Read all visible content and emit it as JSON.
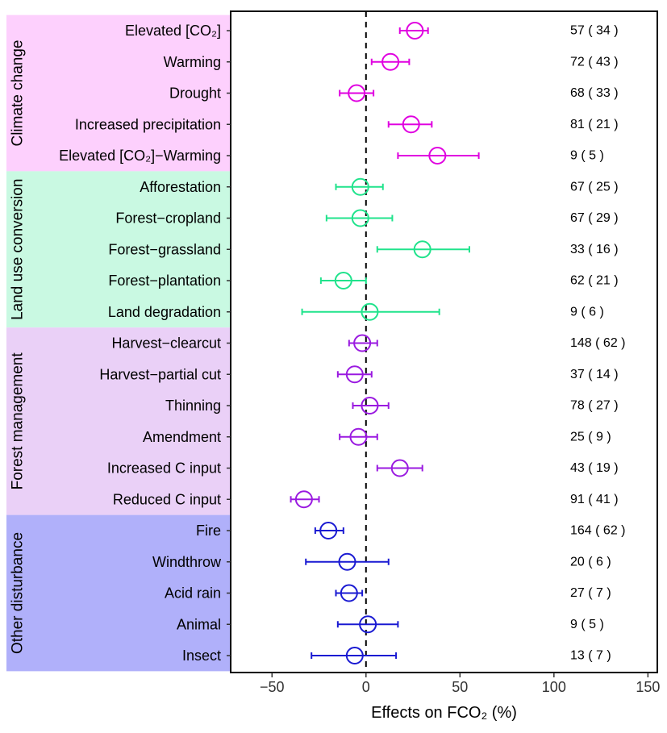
{
  "chart_data": {
    "type": "forest",
    "xlabel": "Effects on FCO₂ (%)",
    "xlim": [
      -72,
      155
    ],
    "xticks": [
      -50,
      0,
      50,
      100,
      150
    ],
    "xtick_labels": [
      "−50",
      "0",
      "50",
      "100",
      "150"
    ],
    "reference_line": 0,
    "groups": [
      {
        "name": "Climate change",
        "color": "#e000e0",
        "bg": "#fdd0fd",
        "rows": [
          {
            "label": "Elevated [CO₂]",
            "mean": 26,
            "lo": 18,
            "hi": 33,
            "count": "57 ( 34 )"
          },
          {
            "label": "Warming",
            "mean": 13,
            "lo": 3,
            "hi": 23,
            "count": "72 ( 43 )"
          },
          {
            "label": "Drought",
            "mean": -5,
            "lo": -14,
            "hi": 4,
            "count": "68 ( 33 )"
          },
          {
            "label": "Increased precipitation",
            "mean": 24,
            "lo": 12,
            "hi": 35,
            "count": "81 ( 21 )"
          },
          {
            "label": "Elevated [CO₂]−Warming",
            "mean": 38,
            "lo": 17,
            "hi": 60,
            "count": "9 ( 5 )"
          }
        ]
      },
      {
        "name": "Land use conversion",
        "color": "#20e38c",
        "bg": "#c9f9e2",
        "rows": [
          {
            "label": "Afforestation",
            "mean": -3,
            "lo": -16,
            "hi": 9,
            "count": "67 ( 25 )"
          },
          {
            "label": "Forest−cropland",
            "mean": -3,
            "lo": -21,
            "hi": 14,
            "count": "67 ( 29 )"
          },
          {
            "label": "Forest−grassland",
            "mean": 30,
            "lo": 6,
            "hi": 55,
            "count": "33 ( 16 )"
          },
          {
            "label": "Forest−plantation",
            "mean": -12,
            "lo": -24,
            "hi": 0,
            "count": "62 ( 21 )"
          },
          {
            "label": "Land degradation",
            "mean": 2,
            "lo": -34,
            "hi": 39,
            "count": "9 ( 6 )"
          }
        ]
      },
      {
        "name": "Forest management",
        "color": "#9a1ae0",
        "bg": "#ead0f7",
        "rows": [
          {
            "label": "Harvest−clearcut",
            "mean": -2,
            "lo": -9,
            "hi": 6,
            "count": "148 ( 62 )"
          },
          {
            "label": "Harvest−partial cut",
            "mean": -6,
            "lo": -15,
            "hi": 3,
            "count": "37 ( 14 )"
          },
          {
            "label": "Thinning",
            "mean": 2,
            "lo": -7,
            "hi": 12,
            "count": "78 ( 27 )"
          },
          {
            "label": "Amendment",
            "mean": -4,
            "lo": -14,
            "hi": 6,
            "count": "25 ( 9 )"
          },
          {
            "label": "Increased C input",
            "mean": 18,
            "lo": 6,
            "hi": 30,
            "count": "43 ( 19 )"
          },
          {
            "label": "Reduced C input",
            "mean": -33,
            "lo": -40,
            "hi": -25,
            "count": "91 ( 41 )"
          }
        ]
      },
      {
        "name": "Other disturbance",
        "color": "#1a1ad2",
        "bg": "#b0b0fa",
        "rows": [
          {
            "label": "Fire",
            "mean": -20,
            "lo": -27,
            "hi": -12,
            "count": "164 ( 62 )"
          },
          {
            "label": "Windthrow",
            "mean": -10,
            "lo": -32,
            "hi": 12,
            "count": "20 ( 6 )"
          },
          {
            "label": "Acid rain",
            "mean": -9,
            "lo": -16,
            "hi": -2,
            "count": "27 ( 7 )"
          },
          {
            "label": "Animal",
            "mean": 1,
            "lo": -15,
            "hi": 17,
            "count": "9 ( 5 )"
          },
          {
            "label": "Insect",
            "mean": -6,
            "lo": -29,
            "hi": 16,
            "count": "13 ( 7 )"
          }
        ]
      }
    ]
  }
}
